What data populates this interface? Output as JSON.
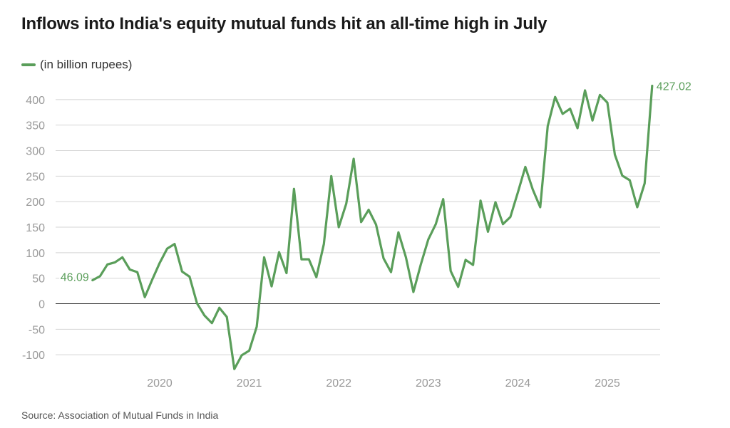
{
  "title": "Inflows into India's equity mutual funds hit an all-time high in July",
  "source": "Source: Association of Mutual Funds in India",
  "colors": {
    "line": "#5a9e5a",
    "grid": "#d4d4d4",
    "zero": "#222222",
    "tick": "#9a9a9a",
    "label": "#5a9e5a"
  },
  "chart_data": {
    "type": "line",
    "title": "Inflows into India's equity mutual funds hit an all-time high in July",
    "ylim": [
      -130,
      430
    ],
    "yticks": [
      -100,
      -50,
      0,
      50,
      100,
      150,
      200,
      250,
      300,
      350,
      400
    ],
    "xticks": [
      "2020",
      "2021",
      "2022",
      "2023",
      "2024",
      "2025"
    ],
    "grid": true,
    "legend_position": "top-left",
    "series": [
      {
        "name": "(in billion rupees)",
        "x": [
          "2019-04",
          "2019-05",
          "2019-06",
          "2019-07",
          "2019-08",
          "2019-09",
          "2019-10",
          "2019-11",
          "2019-12",
          "2020-01",
          "2020-02",
          "2020-03",
          "2020-04",
          "2020-05",
          "2020-06",
          "2020-07",
          "2020-08",
          "2020-09",
          "2020-10",
          "2020-11",
          "2020-12",
          "2021-01",
          "2021-02",
          "2021-03",
          "2021-04",
          "2021-05",
          "2021-06",
          "2021-07",
          "2021-08",
          "2021-09",
          "2021-10",
          "2021-11",
          "2021-12",
          "2022-01",
          "2022-02",
          "2022-03",
          "2022-04",
          "2022-05",
          "2022-06",
          "2022-07",
          "2022-08",
          "2022-09",
          "2022-10",
          "2022-11",
          "2022-12",
          "2023-01",
          "2023-02",
          "2023-03",
          "2023-04",
          "2023-05",
          "2023-06",
          "2023-07",
          "2023-08",
          "2023-09",
          "2023-10",
          "2023-11",
          "2023-12",
          "2024-01",
          "2024-02",
          "2024-03",
          "2024-04",
          "2024-05",
          "2024-06",
          "2024-07",
          "2024-08",
          "2024-09",
          "2024-10",
          "2024-11",
          "2024-12",
          "2025-01",
          "2025-02",
          "2025-03",
          "2025-04",
          "2025-05",
          "2025-06",
          "2025-07"
        ],
        "values": [
          46.09,
          54,
          77,
          81,
          91,
          67,
          62,
          13,
          47,
          80,
          108,
          117,
          63,
          53,
          1,
          -23,
          -38,
          -8,
          -26,
          -128,
          -101,
          -92,
          -45,
          91,
          34,
          101,
          60,
          225,
          87,
          87,
          52,
          117,
          250,
          150,
          196,
          284,
          160,
          184,
          155,
          89,
          62,
          140,
          91,
          23,
          77,
          126,
          156,
          205,
          64,
          33,
          86,
          76,
          202,
          141,
          199,
          156,
          170,
          218,
          268,
          224,
          189,
          348,
          405,
          372,
          382,
          344,
          418,
          359,
          409,
          394,
          292,
          251,
          242,
          189,
          236,
          427.02
        ]
      }
    ],
    "annotations": [
      {
        "label": "46.09",
        "x": "2019-04",
        "value": 46.09
      },
      {
        "label": "427.02",
        "x": "2025-07",
        "value": 427.02
      }
    ]
  }
}
